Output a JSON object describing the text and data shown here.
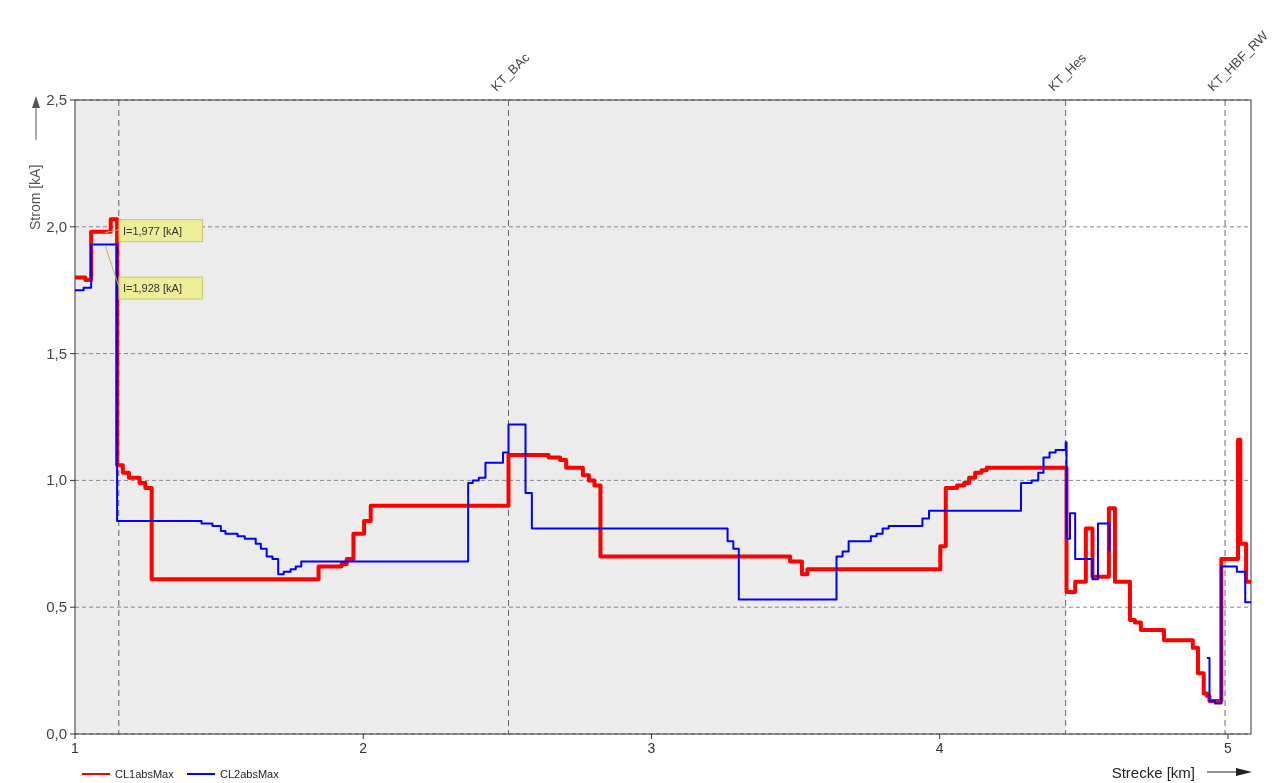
{
  "chart_data": {
    "type": "step",
    "xlabel": "Strecke [km]",
    "ylabel": "Strom [kA]",
    "xlim": [
      1,
      5.08
    ],
    "xticks": [
      1,
      2,
      3,
      4,
      5
    ],
    "ylim": [
      0,
      2.5
    ],
    "yticks": [
      {
        "value": 0,
        "label": "0,0"
      },
      {
        "value": 0.5,
        "label": "0,5"
      },
      {
        "value": 1,
        "label": "1,0"
      },
      {
        "value": 1.5,
        "label": "1,5"
      },
      {
        "value": 2,
        "label": "2,0"
      },
      {
        "value": 2.5,
        "label": "2,5"
      }
    ],
    "grid": "y",
    "legend": "bottom left",
    "line_style": "solid",
    "marker": "none",
    "ref_lines": [
      {
        "axis": "x",
        "value": 1.152,
        "label": null
      },
      {
        "axis": "x",
        "value": 2.504,
        "label": "KT_BAc"
      },
      {
        "axis": "x",
        "value": 4.437,
        "label": "KT_Hes"
      },
      {
        "axis": "x",
        "value": 4.99,
        "label": "KT_HBF_RW"
      }
    ],
    "bands": [
      {
        "axis": "x",
        "from": 1,
        "to": 4.437,
        "label": null,
        "color": "#ececec"
      }
    ],
    "annotations": [
      {
        "text": "I=1,977 [kA]",
        "x": 1.104,
        "y": 1.977
      },
      {
        "text": "I=1,928 [kA]",
        "x": 1.104,
        "y": 1.928
      }
    ],
    "series": [
      {
        "name": "CL1absMax",
        "color": "#ff0000",
        "x": [
          1,
          1.036,
          1.056,
          1.124,
          1.146,
          1.166,
          1.187,
          1.224,
          1.244,
          1.266,
          1.845,
          1.925,
          1.943,
          1.966,
          2.003,
          2.026,
          2.504,
          2.643,
          2.683,
          2.704,
          2.762,
          2.783,
          2.802,
          2.823,
          3.481,
          3.522,
          3.541,
          4.002,
          4.021,
          4.06,
          4.085,
          4.102,
          4.123,
          4.145,
          4.163,
          4.44,
          4.47,
          4.507,
          4.53,
          4.587,
          4.608,
          4.66,
          4.677,
          4.698,
          4.778,
          4.878,
          4.896,
          4.916,
          4.927,
          4.936,
          4.977,
          5.035,
          5.043,
          5.063,
          5.08
        ],
        "values": [
          1.8,
          1.79,
          1.98,
          2.03,
          1.06,
          1.03,
          1.01,
          0.99,
          0.97,
          0.61,
          0.66,
          0.67,
          0.69,
          0.79,
          0.84,
          0.9,
          1.1,
          1.09,
          1.08,
          1.05,
          1.02,
          1.0,
          0.98,
          0.7,
          0.68,
          0.63,
          0.65,
          0.74,
          0.97,
          0.98,
          0.99,
          1.01,
          1.03,
          1.04,
          1.05,
          0.56,
          0.6,
          0.81,
          0.62,
          0.89,
          0.6,
          0.45,
          0.44,
          0.41,
          0.37,
          0.34,
          0.24,
          0.16,
          0.15,
          0.13,
          0.69,
          1.16,
          0.75,
          0.6,
          0.6
        ]
      },
      {
        "name": "CL2absMax",
        "color": "#0000ff",
        "x": [
          1,
          1.03,
          1.056,
          1.146,
          1.439,
          1.477,
          1.506,
          1.522,
          1.564,
          1.589,
          1.627,
          1.645,
          1.665,
          1.685,
          1.705,
          1.724,
          1.748,
          1.766,
          1.785,
          2.364,
          2.38,
          2.401,
          2.424,
          2.464,
          2.485,
          2.504,
          2.563,
          2.585,
          3.264,
          3.284,
          3.303,
          3.642,
          3.663,
          3.684,
          3.706,
          3.761,
          3.781,
          3.802,
          3.823,
          3.842,
          3.94,
          3.963,
          4.282,
          4.319,
          4.342,
          4.36,
          4.381,
          4.402,
          4.437,
          4.44,
          4.452,
          4.47,
          4.53,
          4.549,
          4.589,
          4.608,
          4.927,
          4.936,
          4.955,
          4.977,
          5.031,
          5.06,
          5.08
        ],
        "values": [
          1.75,
          1.76,
          1.93,
          0.84,
          0.83,
          0.82,
          0.8,
          0.79,
          0.78,
          0.77,
          0.75,
          0.73,
          0.7,
          0.69,
          0.63,
          0.64,
          0.65,
          0.66,
          0.68,
          0.99,
          1.0,
          1.01,
          1.07,
          1.07,
          1.11,
          1.22,
          0.95,
          0.81,
          0.76,
          0.73,
          0.53,
          0.7,
          0.72,
          0.76,
          0.76,
          0.78,
          0.79,
          0.81,
          0.82,
          0.82,
          0.85,
          0.88,
          0.99,
          1.0,
          1.03,
          1.09,
          1.11,
          1.12,
          1.15,
          0.77,
          0.87,
          0.69,
          0.61,
          0.83,
          0.72,
          null,
          0.3,
          0.13,
          0.12,
          0.66,
          0.64,
          0.52,
          0.52
        ]
      }
    ]
  }
}
